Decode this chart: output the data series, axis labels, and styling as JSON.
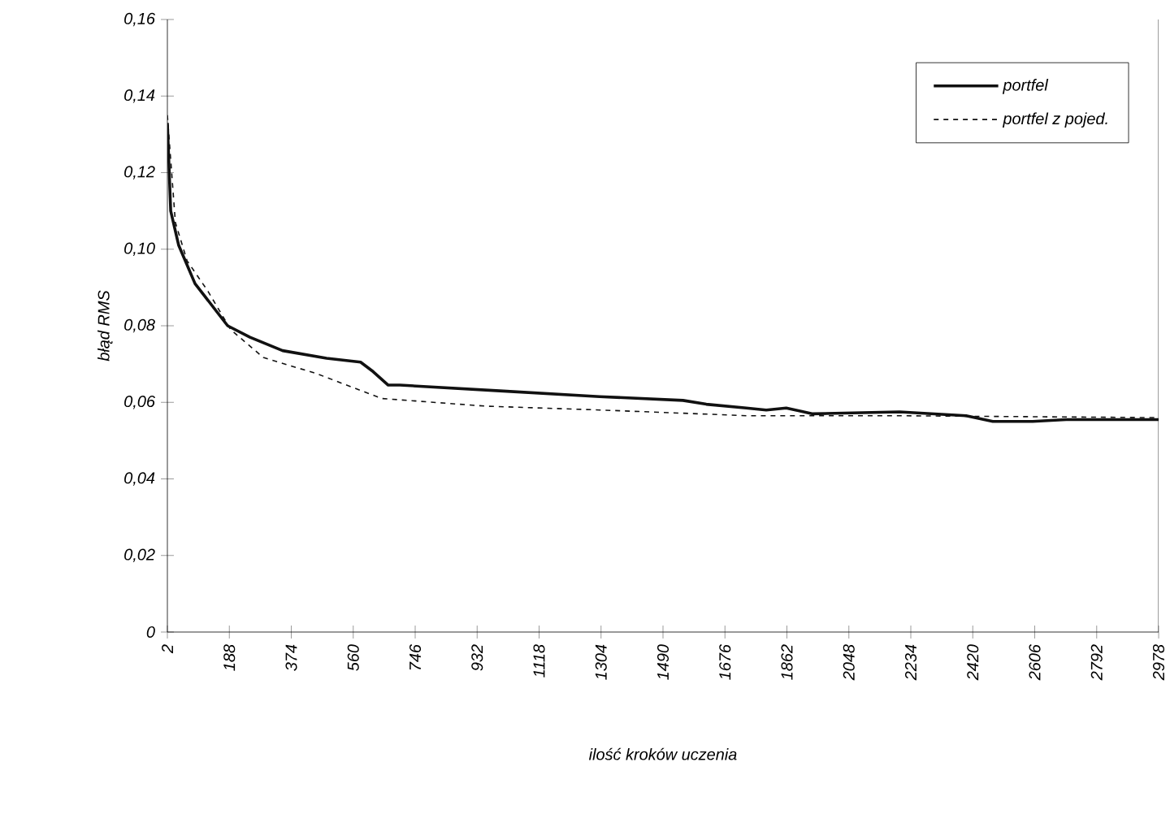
{
  "chart_data": {
    "type": "line",
    "xlabel": "ilość kroków uczenia",
    "ylabel": "błąd RMS",
    "xlim": [
      2,
      2978
    ],
    "xticks": [
      2,
      188,
      374,
      560,
      746,
      932,
      1118,
      1304,
      1490,
      1676,
      1862,
      2048,
      2234,
      2420,
      2606,
      2792,
      2978
    ],
    "ylim": [
      0,
      0.16
    ],
    "yticks": [
      {
        "value": 0,
        "label": "0"
      },
      {
        "value": 0.02,
        "label": "0,02"
      },
      {
        "value": 0.04,
        "label": "0,04"
      },
      {
        "value": 0.06,
        "label": "0,06"
      },
      {
        "value": 0.08,
        "label": "0,08"
      },
      {
        "value": 0.1,
        "label": "0,10"
      },
      {
        "value": 0.12,
        "label": "0,12"
      },
      {
        "value": 0.14,
        "label": "0,14"
      },
      {
        "value": 0.16,
        "label": "0,16"
      }
    ],
    "legend": "top right",
    "grid": false,
    "marker": "none",
    "series": [
      {
        "name": "portfel",
        "color": "#111111",
        "line_style": "solid",
        "x": [
          2,
          12,
          36,
          85,
          183,
          250,
          348,
          480,
          582,
          620,
          665,
          700,
          1000,
          1300,
          1550,
          1620,
          1740,
          1800,
          1860,
          1940,
          2200,
          2400,
          2480,
          2600,
          2700,
          2978
        ],
        "values": [
          0.133,
          0.11,
          0.101,
          0.091,
          0.08,
          0.077,
          0.0735,
          0.0715,
          0.0705,
          0.068,
          0.0645,
          0.0645,
          0.063,
          0.0615,
          0.0605,
          0.0595,
          0.0585,
          0.058,
          0.0585,
          0.057,
          0.0575,
          0.0565,
          0.055,
          0.055,
          0.0555,
          0.0555
        ]
      },
      {
        "name": "portfel z pojed.",
        "color": "#111111",
        "line_style": "dashed",
        "x": [
          2,
          26,
          61,
          124,
          192,
          290,
          450,
          646,
          958,
          1300,
          1744,
          2200,
          2978
        ],
        "values": [
          0.135,
          0.107,
          0.097,
          0.089,
          0.079,
          0.0717,
          0.0675,
          0.061,
          0.059,
          0.058,
          0.0565,
          0.0565,
          0.056
        ]
      }
    ]
  }
}
